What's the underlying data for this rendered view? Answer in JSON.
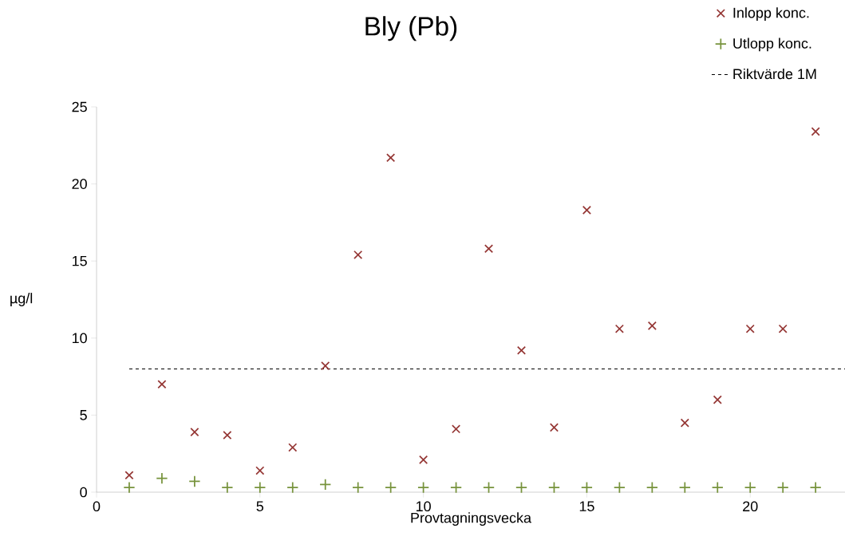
{
  "chart_data": {
    "type": "scatter",
    "title": "Bly (Pb)",
    "xlabel": "Provtagningsvecka",
    "ylabel": "µg/l",
    "x": [
      1,
      2,
      3,
      4,
      5,
      6,
      7,
      8,
      9,
      10,
      11,
      12,
      13,
      14,
      15,
      16,
      17,
      18,
      19,
      20,
      21,
      22
    ],
    "series": [
      {
        "name": "Inlopp konc.",
        "color": "#953735",
        "marker": "cross",
        "values": [
          1.1,
          7.0,
          3.9,
          3.7,
          1.4,
          2.9,
          8.2,
          15.4,
          21.7,
          2.1,
          4.1,
          15.8,
          9.2,
          4.2,
          18.3,
          10.6,
          10.8,
          4.5,
          6.0,
          10.6,
          10.6,
          23.4
        ]
      },
      {
        "name": "Utlopp konc.",
        "color": "#77933c",
        "marker": "plus",
        "values": [
          0.3,
          0.9,
          0.7,
          0.3,
          0.3,
          0.3,
          0.5,
          0.3,
          0.3,
          0.3,
          0.3,
          0.3,
          0.3,
          0.3,
          0.3,
          0.3,
          0.3,
          0.3,
          0.3,
          0.3,
          0.3,
          0.3
        ]
      },
      {
        "name": "Riktvärde 1M",
        "type": "line",
        "color": "#000000",
        "line_style": "dashed",
        "marker": "none",
        "x": [
          1,
          22.9
        ],
        "values": [
          8,
          8
        ]
      }
    ],
    "xlim": [
      0,
      22.9
    ],
    "xticks": [
      0,
      5,
      10,
      15,
      20
    ],
    "ylim": [
      0,
      25
    ],
    "yticks": [
      0,
      5,
      10,
      15,
      20,
      25
    ],
    "grid": false,
    "legend": "top right"
  }
}
